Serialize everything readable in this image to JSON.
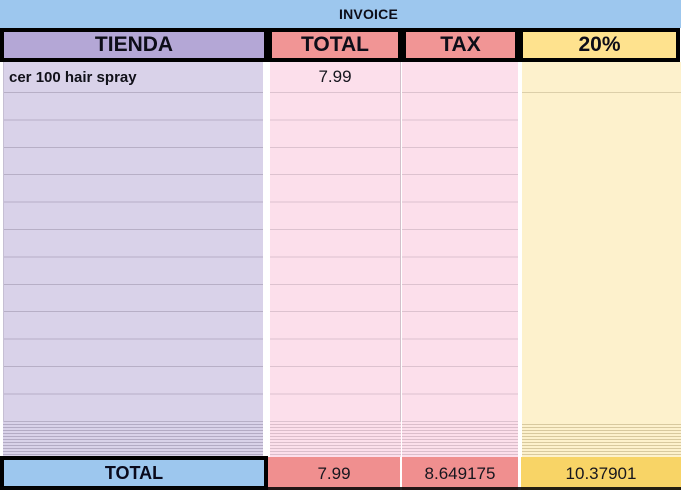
{
  "sheet": {
    "title": "INVOICE",
    "header": {
      "tienda": "TIENDA",
      "total": "TOTAL",
      "tax": "TAX",
      "pct": "20%"
    },
    "first_row": {
      "tienda": "cer 100 hair spray",
      "total": "7.99",
      "tax": "",
      "pct": ""
    },
    "empty_row_count": 12,
    "squeezed_thin_row_count": 12,
    "footer": {
      "label": "TOTAL",
      "total": "7.99",
      "tax": "8.649175",
      "pct": "10.37901"
    },
    "colors": {
      "banner_blue": "#9dc7ee",
      "header_purple": "#b4a7d6",
      "header_salmon": "#f19595",
      "header_yellow": "#fee28e",
      "body_purple": "#d9d2e9",
      "body_pink": "#fcdfeb",
      "body_yellow": "#fdf1cc",
      "footer_blue": "#9dc7ee",
      "footer_salmon": "#f08f8f",
      "footer_yellow": "#f8d466",
      "border_black": "#000000"
    }
  }
}
